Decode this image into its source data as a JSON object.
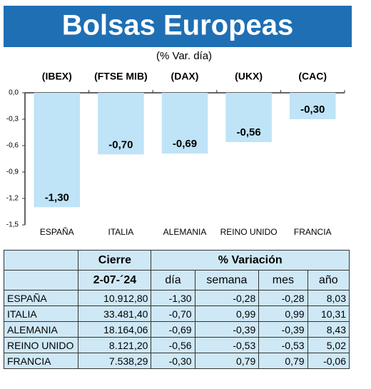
{
  "chart_data": {
    "type": "bar",
    "title": "Bolsas Europeas",
    "subtitle": "(% Var. día)",
    "categories": [
      "ESPAÑA",
      "ITALIA",
      "ALEMANIA",
      "REINO UNIDO",
      "FRANCIA"
    ],
    "indices": [
      "(IBEX)",
      "(FTSE MIB)",
      "(DAX)",
      "(UKX)",
      "(CAC)"
    ],
    "values": [
      -1.3,
      -0.7,
      -0.69,
      -0.56,
      -0.3
    ],
    "value_labels": [
      "-1,30",
      "-0,70",
      "-0,69",
      "-0,56",
      "-0,30"
    ],
    "color": "#bfe3f7",
    "ylim": [
      -1.5,
      0
    ],
    "yticks": [
      {
        "value": 0,
        "label": "0,0"
      },
      {
        "value": -0.3,
        "label": "-0,3"
      },
      {
        "value": -0.6,
        "label": "-0,6"
      },
      {
        "value": -0.9,
        "label": "-0,9"
      },
      {
        "value": -1.2,
        "label": "-1,2"
      },
      {
        "value": -1.5,
        "label": "-1,5"
      }
    ]
  },
  "table": {
    "header": [
      "Cierre",
      "% Variación"
    ],
    "subheader": [
      "2-07-´24",
      "día",
      "semana",
      "mes",
      "año"
    ],
    "rows": [
      [
        "ESPAÑA",
        "10.912,80",
        "-1,30",
        "-0,28",
        "-0,28",
        "8,03"
      ],
      [
        "ITALIA",
        "33.481,40",
        "-0,70",
        "0,99",
        "0,99",
        "10,31"
      ],
      [
        "ALEMANIA",
        "18.164,06",
        "-0,69",
        "-0,39",
        "-0,39",
        "8,43"
      ],
      [
        "REINO UNIDO",
        "8.121,20",
        "-0,56",
        "-0,53",
        "-0,53",
        "5,02"
      ],
      [
        "FRANCIA",
        "7.538,29",
        "-0,30",
        "0,79",
        "0,79",
        "-0,06"
      ]
    ]
  }
}
